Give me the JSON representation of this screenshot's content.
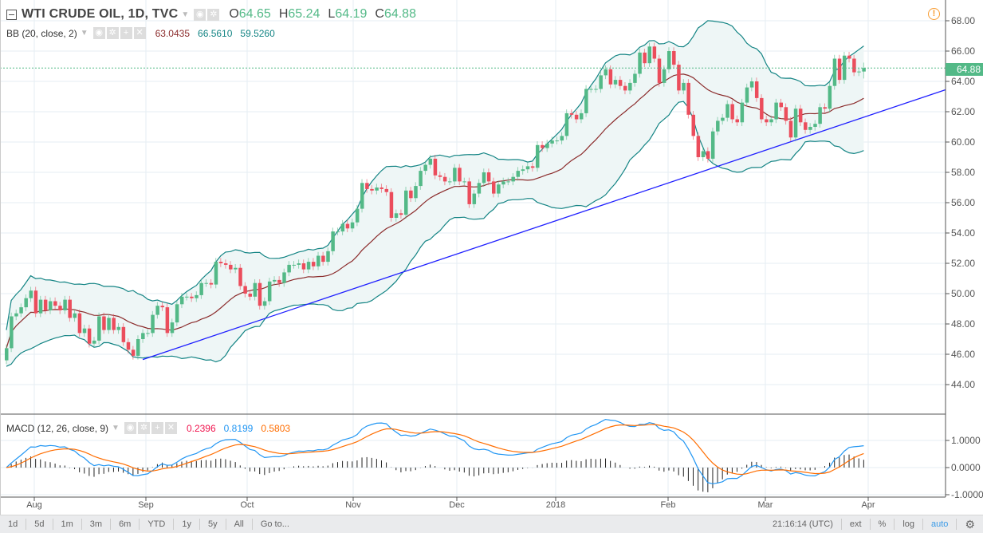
{
  "header": {
    "symbol_title": "WTI CRUDE OIL, 1D, TVC",
    "ohlc": {
      "o_label": "O",
      "o": "64.65",
      "h_label": "H",
      "h": "65.24",
      "l_label": "L",
      "l": "64.19",
      "c_label": "C",
      "c": "64.88"
    }
  },
  "bb_legend": {
    "label": "BB (20, close, 2)",
    "basis": "63.0435",
    "upper": "66.5610",
    "lower": "59.5260"
  },
  "macd_legend": {
    "label": "MACD (12, 26, close, 9)",
    "histogram": "0.2396",
    "macd": "0.8199",
    "signal": "0.5803"
  },
  "price_axis": {
    "ticks": [
      "68.00",
      "66.00",
      "64.00",
      "62.00",
      "60.00",
      "58.00",
      "56.00",
      "54.00",
      "52.00",
      "50.00",
      "48.00",
      "46.00",
      "44.00"
    ],
    "last_price": "64.88"
  },
  "macd_axis": {
    "ticks": [
      "1.0000",
      "0.0000",
      "-1.0000"
    ]
  },
  "time_axis": {
    "labels": [
      "Aug",
      "Sep",
      "Oct",
      "Nov",
      "Dec",
      "2018",
      "Feb",
      "Mar",
      "Apr"
    ]
  },
  "toolbar": {
    "ranges": [
      "1d",
      "5d",
      "1m",
      "3m",
      "6m",
      "YTD",
      "1y",
      "5y",
      "All"
    ],
    "goto": "Go to...",
    "clock": "21:16:14 (UTC)",
    "ext": "ext",
    "percent": "%",
    "log": "log",
    "auto": "auto"
  },
  "colors": {
    "up": "#53b987",
    "down": "#eb4d5c",
    "bb_band": "#138484",
    "bb_basis": "#8b2b2b",
    "bb_fill": "#eef6f6",
    "trendline": "#1f1fff",
    "macd": "#2196f3",
    "signal": "#ff6d00",
    "histogram": "#222222",
    "histogram_value": "#f0134d",
    "alert": "#f89b2f"
  },
  "icons": {
    "alert": "alert-circle-icon",
    "settings": "gear-icon",
    "eye": "eye-icon",
    "add": "plus-icon",
    "remove": "close-icon",
    "collapse": "collapse-icon"
  },
  "chart_data": {
    "type": "candlestick",
    "symbol": "WTI CRUDE OIL",
    "interval": "1D",
    "ylim": [
      43,
      68.5
    ],
    "first_open": 45.6,
    "closes": [
      46.4,
      48.5,
      48.7,
      49.1,
      49.7,
      50.2,
      48.7,
      49.6,
      48.9,
      49.5,
      49.2,
      48.9,
      49.6,
      48.4,
      48.7,
      47.4,
      47.7,
      46.7,
      46.9,
      48.5,
      47.6,
      48.4,
      47.6,
      47.8,
      46.8,
      46.3,
      45.9,
      47.0,
      47.4,
      47.4,
      48.6,
      49.2,
      49.1,
      47.4,
      48.1,
      49.3,
      49.8,
      49.8,
      49.7,
      49.9,
      50.7,
      50.7,
      50.6,
      52.1,
      52.0,
      51.9,
      51.6,
      51.7,
      50.5,
      50.0,
      49.8,
      50.7,
      49.2,
      49.5,
      50.8,
      50.9,
      50.7,
      51.4,
      51.9,
      51.9,
      52.0,
      51.6,
      52.1,
      51.8,
      52.5,
      52.1,
      52.8,
      54.1,
      54.1,
      54.6,
      54.3,
      54.7,
      55.6,
      57.3,
      56.9,
      56.8,
      57.0,
      56.9,
      56.7,
      55.0,
      55.3,
      55.2,
      56.8,
      56.3,
      57.1,
      58.1,
      58.5,
      58.9,
      57.8,
      57.7,
      57.4,
      57.4,
      58.3,
      57.4,
      57.4,
      55.9,
      56.6,
      57.3,
      58.0,
      57.4,
      56.6,
      57.2,
      57.4,
      57.4,
      57.7,
      58.1,
      58.2,
      58.4,
      58.3,
      59.8,
      59.6,
      59.9,
      60.1,
      60.1,
      60.4,
      61.9,
      61.8,
      61.5,
      61.9,
      63.5,
      63.5,
      63.5,
      64.4,
      64.8,
      63.8,
      64.1,
      63.7,
      63.4,
      63.9,
      64.5,
      65.9,
      65.2,
      66.3,
      65.5,
      63.9,
      64.8,
      66.0,
      65.1,
      63.4,
      63.9,
      61.8,
      60.4,
      59.0,
      59.4,
      58.9,
      60.7,
      61.4,
      61.6,
      62.5,
      61.5,
      61.3,
      62.6,
      63.6,
      64.0,
      62.9,
      61.5,
      61.3,
      61.5,
      62.6,
      62.3,
      61.4,
      60.3,
      62.2,
      61.3,
      60.8,
      61.0,
      61.2,
      62.3,
      62.2,
      63.7,
      65.5,
      64.1,
      65.7,
      65.5,
      64.6,
      64.65,
      64.88
    ],
    "last_bar": {
      "open": 64.65,
      "high": 65.24,
      "low": 64.19,
      "close": 64.88
    },
    "indicators": {
      "bollinger": {
        "length": 20,
        "source": "close",
        "stddev": 2
      },
      "macd": {
        "fast": 12,
        "slow": 26,
        "source": "close",
        "signal": 9,
        "ylim": [
          -1.1,
          1.3
        ]
      }
    },
    "trendline": {
      "start_bar": 28,
      "start_price": 45.65,
      "slope_per_bar": 0.108
    },
    "grid": true
  }
}
